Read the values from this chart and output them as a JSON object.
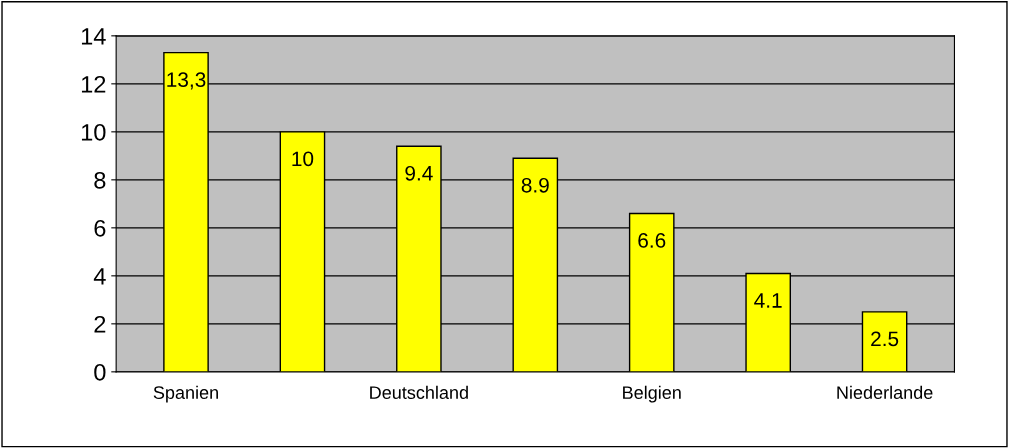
{
  "chart_data": {
    "type": "bar",
    "categories": [
      "Spanien",
      null,
      "Deutschland",
      null,
      "Belgien",
      null,
      "Niederlande"
    ],
    "values": [
      13.3,
      10,
      9.4,
      8.9,
      6.6,
      4.1,
      2.5
    ],
    "value_labels": [
      "13,3",
      "10",
      "9.4",
      "8.9",
      "6.6",
      "4.1",
      "2.5"
    ],
    "color": "#ffff00",
    "ylim": [
      0,
      14
    ],
    "yticks": [
      0,
      2,
      4,
      6,
      8,
      10,
      12,
      14
    ],
    "grid": "y",
    "legend": false
  }
}
